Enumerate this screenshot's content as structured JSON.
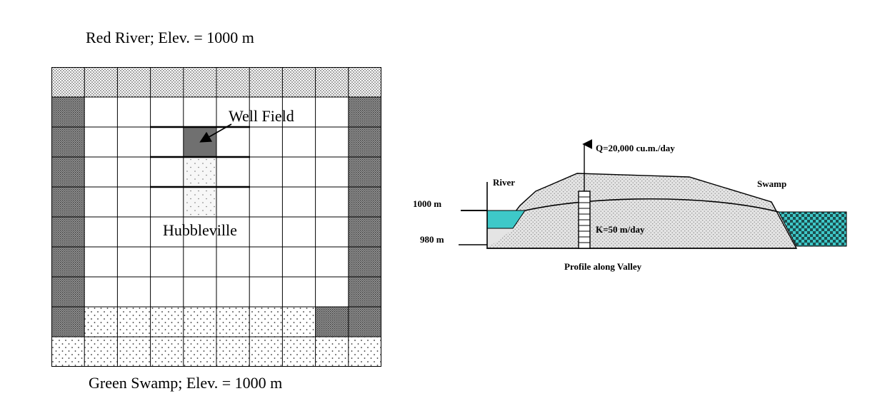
{
  "plan_view": {
    "top_label": "Red River;   Elev. = 1000 m",
    "bottom_label": "Green Swamp;   Elev. = 1000 m",
    "well_field_label": "Well Field",
    "town_label": "Hubbleville",
    "grid": {
      "cols": 10,
      "rows": 10,
      "rows_cells": [
        "ffffffffff",
        "d........d",
        "d...w....d",
        "d...p....d",
        "d...p....d",
        "d........d",
        "d........d",
        "d........d",
        "dsssssssdd",
        "ssssssssss"
      ],
      "cell_legend": {
        "f": "fine-dots",
        "d": "dark-stipple",
        "s": "sparse-dots",
        "w": "well-cell",
        "p": "light-dots",
        ".": "empty"
      }
    }
  },
  "profile_view": {
    "discharge_label": "Q=20,000 cu.m./day",
    "river_label": "River",
    "swamp_label": "Swamp",
    "elev_upper_label": "1000 m",
    "elev_lower_label": "980 m",
    "conductivity_label": "K=50 m/day",
    "caption": "Profile along Valley"
  },
  "colors": {
    "water": "#3ec8c8",
    "dark_fill": "#707070",
    "stipple": "#555555"
  }
}
